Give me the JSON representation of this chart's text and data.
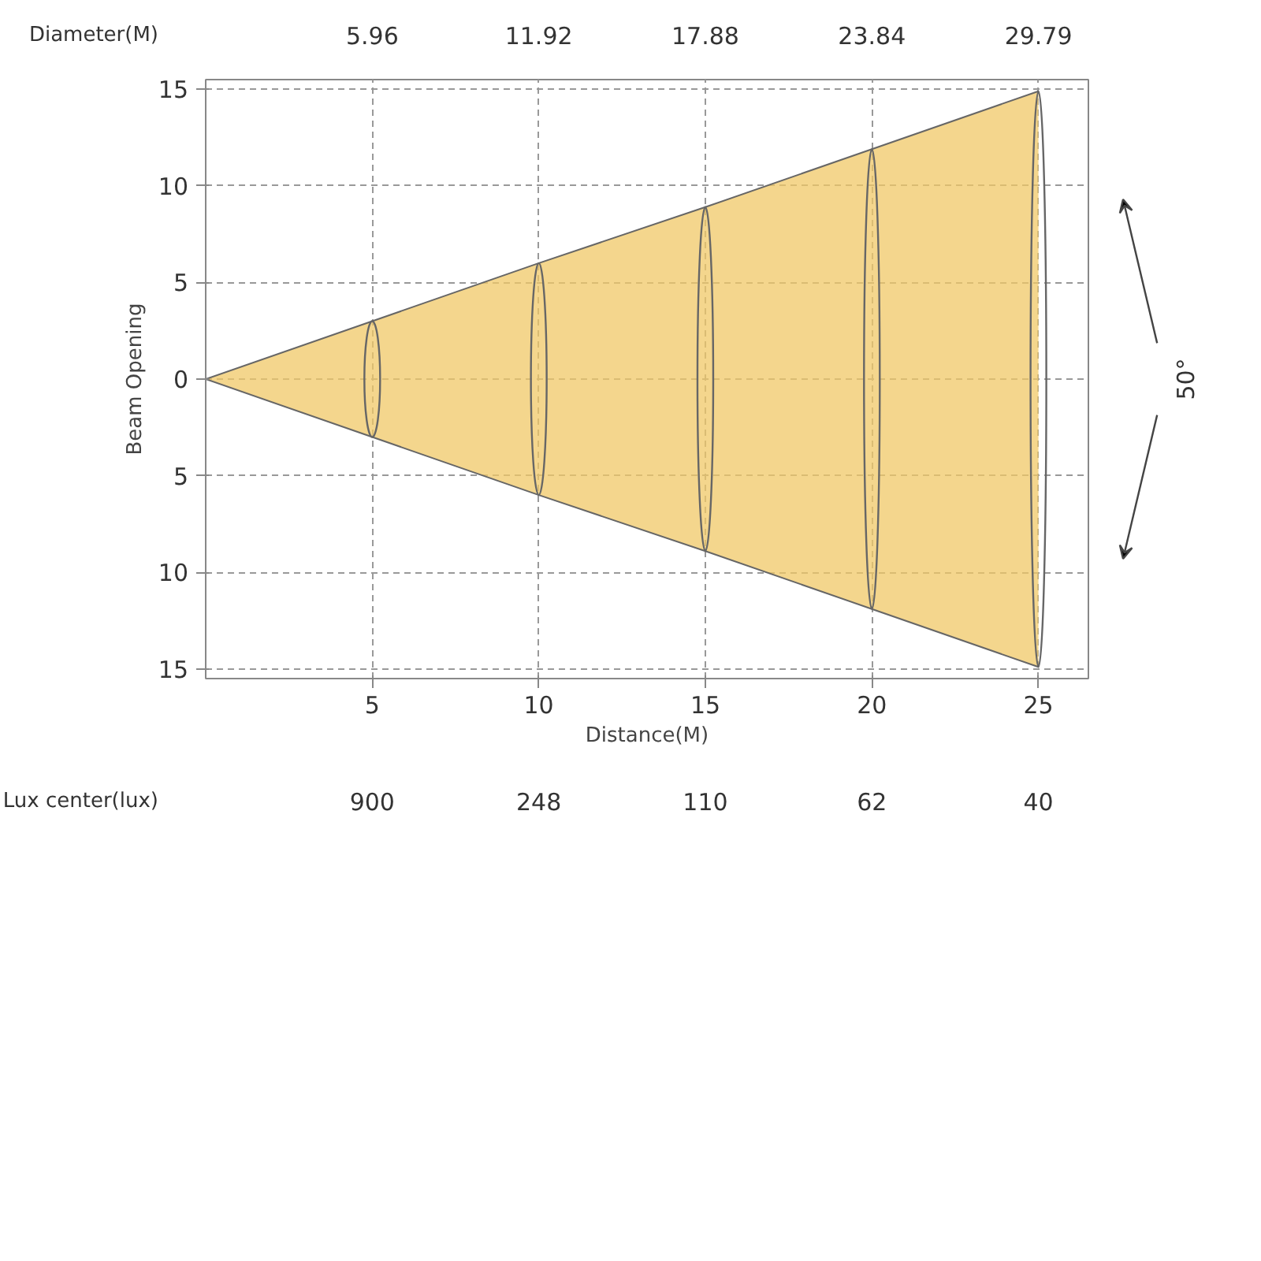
{
  "chart_data": {
    "type": "area",
    "x": [
      0,
      5,
      10,
      15,
      20,
      25
    ],
    "series": [
      {
        "color": "#f0c867",
        "values": [
          0,
          3.0,
          6.0,
          8.9,
          11.9,
          14.9
        ]
      },
      {
        "color": "#f0c867",
        "values": [
          0,
          -3.0,
          -6.0,
          -8.9,
          -11.9,
          -14.9
        ]
      }
    ],
    "xlabel": "Distance(M)",
    "ylabel": "Beam Opening",
    "xlim": [
      0,
      26.5
    ],
    "ylim": [
      -15.5,
      15.5
    ],
    "xticks": [
      5,
      10,
      15,
      20,
      25
    ],
    "yticks": [
      {
        "value": -15,
        "label": "15"
      },
      {
        "value": -10,
        "label": "10"
      },
      {
        "value": -5,
        "label": "5"
      },
      0,
      5,
      10,
      15
    ],
    "grid": true,
    "line_style": "dashed",
    "annotations": [
      "Diameter(M)",
      "5.96",
      "11.92",
      "17.88",
      "23.84",
      "29.79",
      "Lux center(lux)",
      "900",
      "248",
      "110",
      "62",
      "40",
      "50°"
    ]
  }
}
